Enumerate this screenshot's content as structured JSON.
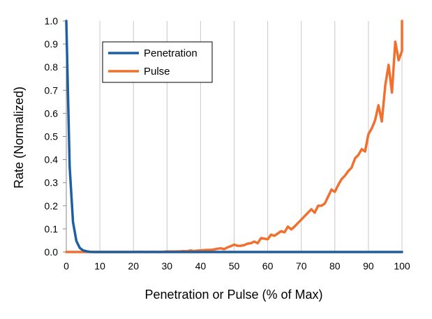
{
  "chart_data": {
    "type": "line",
    "title": "",
    "xlabel": "Penetration or Pulse (% of Max)",
    "ylabel": "Rate  (Normalized)",
    "xlim": [
      0,
      100
    ],
    "ylim": [
      0,
      1.0
    ],
    "x_ticks": [
      "0",
      "10",
      "20",
      "30",
      "40",
      "50",
      "60",
      "70",
      "80",
      "90",
      "100"
    ],
    "y_ticks": [
      "0.0",
      "0.1",
      "0.2",
      "0.3",
      "0.4",
      "0.5",
      "0.6",
      "0.7",
      "0.8",
      "0.9",
      "1.0"
    ],
    "grid": "vertical",
    "legend_position": "top-left",
    "series": [
      {
        "name": "Penetration",
        "color": "#1f5fa0",
        "points": [
          [
            0,
            1.0
          ],
          [
            1,
            0.37
          ],
          [
            2,
            0.13
          ],
          [
            3,
            0.048
          ],
          [
            4,
            0.018
          ],
          [
            5,
            0.007
          ],
          [
            6,
            0.003
          ],
          [
            7,
            0.001
          ],
          [
            8,
            0.0
          ],
          [
            10,
            0.0
          ],
          [
            20,
            0.0
          ],
          [
            30,
            0.0
          ],
          [
            40,
            0.0
          ],
          [
            50,
            0.0
          ],
          [
            60,
            0.0
          ],
          [
            70,
            0.0
          ],
          [
            80,
            0.0
          ],
          [
            90,
            0.0
          ],
          [
            100,
            0.0
          ]
        ]
      },
      {
        "name": "Pulse",
        "color": "#f07030",
        "points": [
          [
            0,
            0.0
          ],
          [
            6,
            0.0
          ],
          [
            10,
            0.0
          ],
          [
            15,
            0.0
          ],
          [
            20,
            0.0
          ],
          [
            22,
            0.001
          ],
          [
            24,
            0.0
          ],
          [
            26,
            0.001
          ],
          [
            28,
            0.0
          ],
          [
            30,
            0.002
          ],
          [
            32,
            0.002
          ],
          [
            34,
            0.003
          ],
          [
            35,
            0.004
          ],
          [
            36,
            0.003
          ],
          [
            37,
            0.007
          ],
          [
            38,
            0.004
          ],
          [
            39,
            0.006
          ],
          [
            40,
            0.007
          ],
          [
            41,
            0.008
          ],
          [
            42,
            0.009
          ],
          [
            43,
            0.009
          ],
          [
            44,
            0.011
          ],
          [
            45,
            0.014
          ],
          [
            46,
            0.016
          ],
          [
            47,
            0.012
          ],
          [
            48,
            0.02
          ],
          [
            49,
            0.025
          ],
          [
            50,
            0.032
          ],
          [
            51,
            0.027
          ],
          [
            52,
            0.027
          ],
          [
            53,
            0.03
          ],
          [
            54,
            0.036
          ],
          [
            55,
            0.038
          ],
          [
            56,
            0.045
          ],
          [
            57,
            0.038
          ],
          [
            58,
            0.06
          ],
          [
            59,
            0.058
          ],
          [
            60,
            0.055
          ],
          [
            61,
            0.075
          ],
          [
            62,
            0.07
          ],
          [
            63,
            0.08
          ],
          [
            64,
            0.09
          ],
          [
            65,
            0.085
          ],
          [
            66,
            0.11
          ],
          [
            67,
            0.098
          ],
          [
            68,
            0.11
          ],
          [
            69,
            0.125
          ],
          [
            70,
            0.14
          ],
          [
            71,
            0.155
          ],
          [
            72,
            0.17
          ],
          [
            73,
            0.185
          ],
          [
            74,
            0.17
          ],
          [
            75,
            0.2
          ],
          [
            76,
            0.2
          ],
          [
            77,
            0.21
          ],
          [
            78,
            0.24
          ],
          [
            79,
            0.27
          ],
          [
            80,
            0.26
          ],
          [
            81,
            0.29
          ],
          [
            82,
            0.315
          ],
          [
            83,
            0.33
          ],
          [
            84,
            0.35
          ],
          [
            85,
            0.365
          ],
          [
            86,
            0.405
          ],
          [
            87,
            0.42
          ],
          [
            88,
            0.445
          ],
          [
            89,
            0.435
          ],
          [
            90,
            0.51
          ],
          [
            91,
            0.535
          ],
          [
            92,
            0.57
          ],
          [
            93,
            0.635
          ],
          [
            94,
            0.565
          ],
          [
            95,
            0.72
          ],
          [
            96,
            0.81
          ],
          [
            97,
            0.69
          ],
          [
            98,
            0.91
          ],
          [
            99,
            0.83
          ],
          [
            100,
            0.87
          ],
          [
            101,
            1.0
          ]
        ]
      }
    ]
  }
}
